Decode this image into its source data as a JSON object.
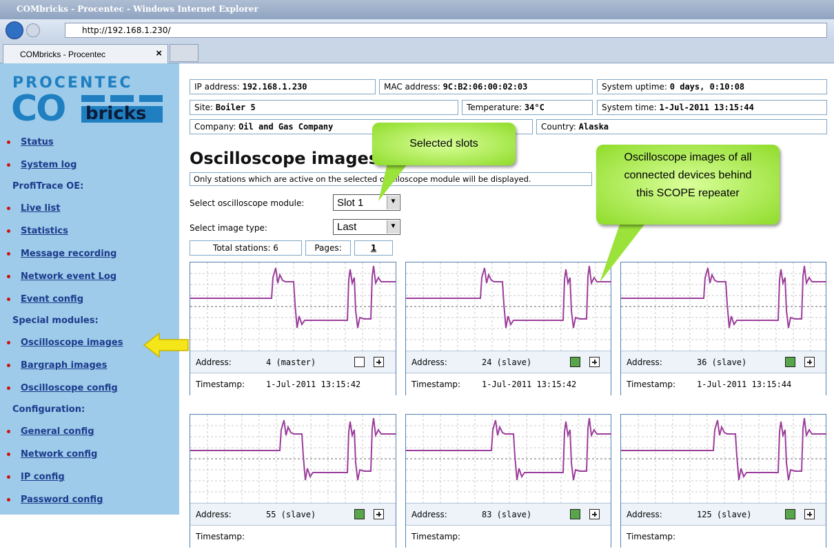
{
  "browser": {
    "window_title": "COMbricks - Procentec - Windows Internet Explorer",
    "url": "http://192.168.1.230/",
    "tab": "COMbricks - Procentec",
    "tab_close": "×"
  },
  "sidebar": {
    "brand": "PROCENTEC",
    "logo_com": "CO",
    "logo_bricks": "bricks",
    "sections": [
      {
        "items": [
          "Status",
          "System log"
        ]
      },
      {
        "heading": "ProfiTrace OE:",
        "items": [
          "Live list",
          "Statistics",
          "Message recording",
          "Network event Log",
          "Event config"
        ]
      },
      {
        "heading": "Special modules:",
        "items": [
          "Oscilloscope images",
          "Bargraph images",
          "Oscilloscope config"
        ]
      },
      {
        "heading": "Configuration:",
        "items": [
          "General config",
          "Network config",
          "IP config",
          "Password config"
        ]
      }
    ]
  },
  "info": {
    "rows": [
      [
        {
          "label": "IP address:",
          "value": "192.168.1.230"
        },
        {
          "label": "MAC address:",
          "value": "9C:B2:06:00:02:03"
        },
        {
          "label": "System uptime:",
          "value": "0 days, 0:10:08"
        }
      ],
      [
        {
          "label": "Site:",
          "value": "Boiler 5"
        },
        {
          "label": "Temperature:",
          "value": "34°C"
        },
        {
          "label": "System time:",
          "value": "1-Jul-2011 13:15:44"
        }
      ],
      [
        {
          "label": "Company:",
          "value": "Oil and Gas Company"
        },
        {
          "label": "Country:",
          "value": "Alaska"
        }
      ]
    ]
  },
  "page": {
    "heading": "Oscilloscope images",
    "notice": "Only stations which are active on the selected oscilloscope module will be displayed.",
    "module_label": "Select oscilloscope module:",
    "module_value": "Slot 1",
    "type_label": "Select image type:",
    "type_value": "Last",
    "total_stations": "Total stations: 6",
    "pages_label": "Pages:",
    "page_link": "1"
  },
  "scopes": {
    "address_label": "Address:",
    "timestamp_label": "Timestamp:",
    "cards": [
      {
        "address": "4 (master)",
        "timestamp": "1-Jul-2011 13:15:42",
        "active": false
      },
      {
        "address": "24 (slave)",
        "timestamp": "1-Jul-2011 13:15:42",
        "active": true
      },
      {
        "address": "36 (slave)",
        "timestamp": "1-Jul-2011 13:15:44",
        "active": true
      },
      {
        "address": "55 (slave)",
        "active": true
      },
      {
        "address": "83 (slave)",
        "active": true
      },
      {
        "address": "125 (slave)",
        "active": true
      }
    ]
  },
  "callouts": {
    "slots": "Selected slots",
    "images": "Oscilloscope images of all connected devices behind this SCOPE repeater"
  }
}
